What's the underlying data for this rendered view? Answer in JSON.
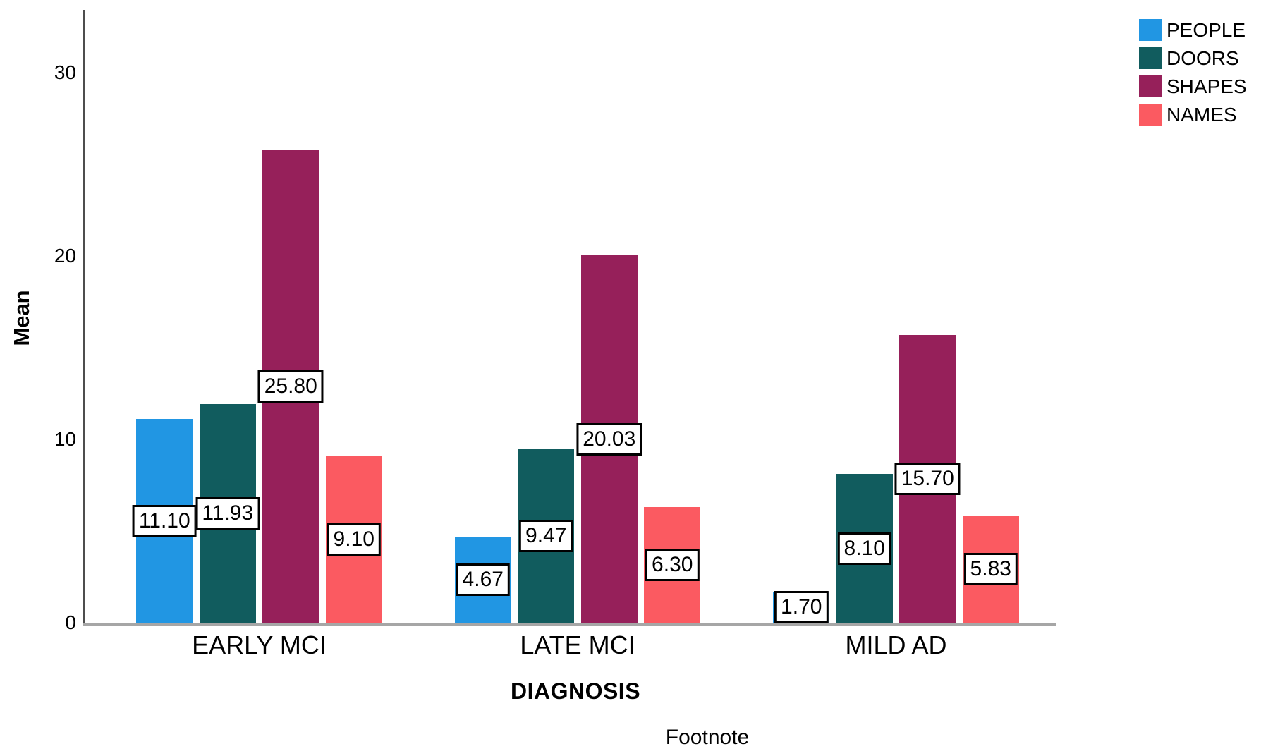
{
  "chart_data": {
    "type": "bar",
    "title": "",
    "xlabel": "DIAGNOSIS",
    "ylabel": "Mean",
    "footnote": "Footnote",
    "categories": [
      "EARLY MCI",
      "LATE MCI",
      "MILD AD"
    ],
    "series": [
      {
        "name": "PEOPLE",
        "color": "#2196E3",
        "values": [
          11.1,
          4.67,
          1.7
        ],
        "labels": [
          "11.10",
          "4.67",
          "1.70"
        ]
      },
      {
        "name": "DOORS",
        "color": "#115C5E",
        "values": [
          11.93,
          9.47,
          8.1
        ],
        "labels": [
          "11.93",
          "9.47",
          "8.10"
        ]
      },
      {
        "name": "SHAPES",
        "color": "#96205A",
        "values": [
          25.8,
          20.03,
          15.7
        ],
        "labels": [
          "25.80",
          "20.03",
          "15.70"
        ]
      },
      {
        "name": "NAMES",
        "color": "#FB5A61",
        "values": [
          9.1,
          6.3,
          5.83
        ],
        "labels": [
          "9.10",
          "6.30",
          "5.83"
        ]
      }
    ],
    "yticks": [
      "0",
      "10",
      "20",
      "30"
    ],
    "ytick_values": [
      0,
      10,
      20,
      30
    ],
    "ylim": [
      0,
      33.4
    ],
    "grid": false,
    "legend_position": "top-right",
    "value_label_style": "boxed"
  },
  "colors": {
    "axis": "#4D4D4D",
    "baseline": "#A6A6A6",
    "text": "#000000",
    "value_box_bg": "#FFFFFF",
    "value_box_border": "#000000"
  }
}
